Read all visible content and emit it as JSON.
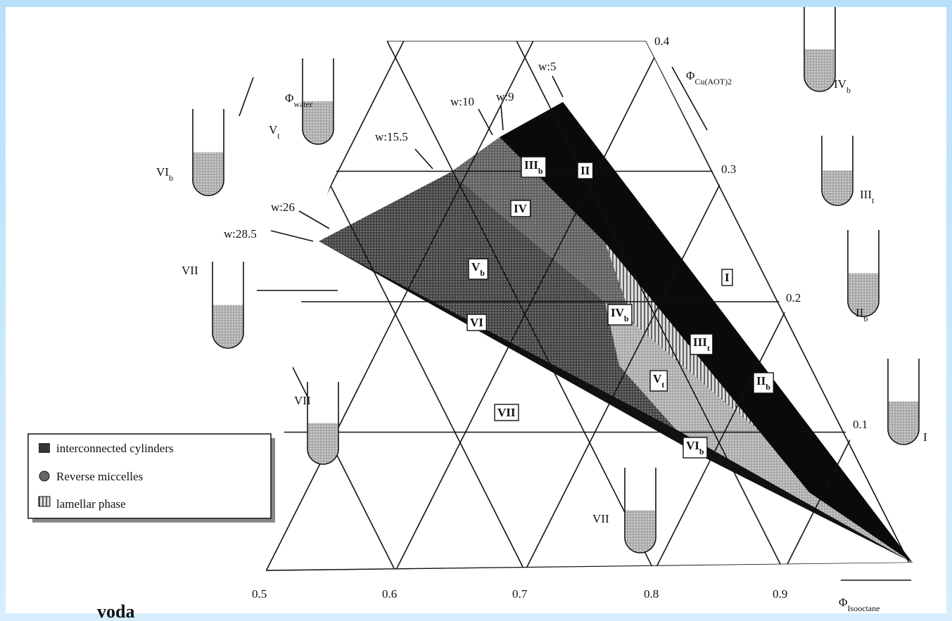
{
  "axes": {
    "water": {
      "main": "Φ",
      "sub": "water"
    },
    "copper": {
      "main": "Φ",
      "sub": "Cu(AOT)",
      "sub2": "2"
    },
    "isooctane": {
      "main": "Φ",
      "sub": "Isooctane"
    }
  },
  "bottom_ticks": [
    "0.5",
    "0.6",
    "0.7",
    "0.8",
    "0.9"
  ],
  "right_ticks": [
    "0.1",
    "0.2",
    "0.3",
    "0.4"
  ],
  "w_labels": [
    "w:5",
    "w:10",
    "w:9",
    "w:15.5",
    "w:26",
    "w:28.5"
  ],
  "regions": [
    {
      "main": "II"
    },
    {
      "main": "III",
      "sub": "b"
    },
    {
      "main": "IV"
    },
    {
      "main": "V",
      "sub": "b"
    },
    {
      "main": "I"
    },
    {
      "main": "VI"
    },
    {
      "main": "IV",
      "sub": "b"
    },
    {
      "main": "III",
      "sub": "t"
    },
    {
      "main": "V",
      "sub": "t"
    },
    {
      "main": "II",
      "sub": "b"
    },
    {
      "main": "VII"
    },
    {
      "main": "VI",
      "sub": "b"
    }
  ],
  "tubes": [
    {
      "main": "IV",
      "sub": "b"
    },
    {
      "main": "III",
      "sub": "t"
    },
    {
      "main": "II",
      "sub": "b"
    },
    {
      "main": "I"
    },
    {
      "main": "V",
      "sub": "t"
    },
    {
      "main": "VI",
      "sub": "b"
    },
    {
      "main": "VII"
    },
    {
      "main": "VII"
    },
    {
      "main": "VII"
    }
  ],
  "legend": [
    "interconnected cylinders",
    "Reverse miccelles",
    "lamellar phase"
  ],
  "caption": "voda"
}
